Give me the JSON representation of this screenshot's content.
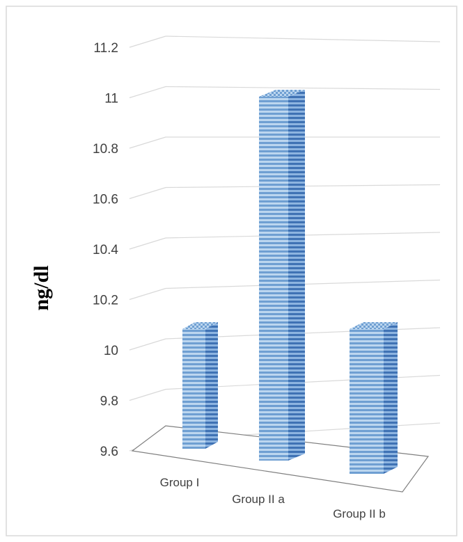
{
  "chart_data": {
    "type": "bar",
    "style": "3d-column",
    "categories": [
      "Group I",
      "Group II a",
      "Group II b"
    ],
    "values": [
      10.1,
      11.0,
      10.1
    ],
    "ylabel": "ng/dl",
    "xlabel": "",
    "ylim": [
      9.6,
      11.2
    ],
    "yticks": [
      "9.6",
      "9.8",
      "10",
      "10.2",
      "10.4",
      "10.6",
      "10.8",
      "11",
      "11.2"
    ],
    "grid": true,
    "legend": "none",
    "colors": {
      "bar_light": "#bcd6ef",
      "bar_mid": "#7aa8d8",
      "bar_dark": "#3f72b4",
      "grid": "#d9d9d9",
      "floor": "#7f7f7f"
    }
  }
}
